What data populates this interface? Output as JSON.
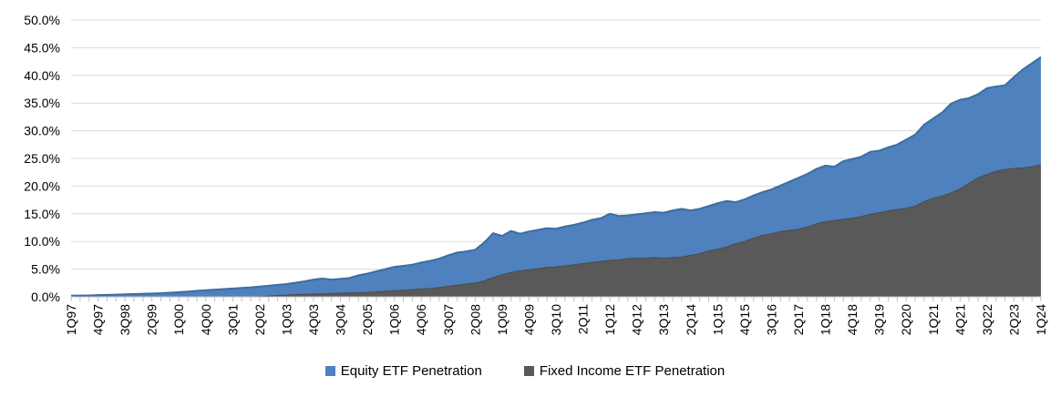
{
  "chart_data": {
    "type": "area",
    "title": "",
    "mode": "overlapping",
    "x_start": "1Q97",
    "x_end": "1Q24",
    "x_frequency": "quarterly",
    "x_tick_interval": 3,
    "x_tick_labels": [
      "1Q97",
      "4Q97",
      "3Q98",
      "2Q99",
      "1Q00",
      "4Q00",
      "3Q01",
      "2Q02",
      "1Q03",
      "4Q03",
      "3Q04",
      "2Q05",
      "1Q06",
      "4Q06",
      "3Q07",
      "2Q08",
      "1Q09",
      "4Q09",
      "3Q10",
      "2Q11",
      "1Q12",
      "4Q12",
      "3Q13",
      "2Q14",
      "1Q15",
      "4Q15",
      "3Q16",
      "2Q17",
      "1Q18",
      "4Q18",
      "3Q19",
      "2Q20",
      "1Q21",
      "4Q21",
      "3Q22",
      "2Q23",
      "1Q24"
    ],
    "y_tick_labels": [
      "0.0%",
      "5.0%",
      "10.0%",
      "15.0%",
      "20.0%",
      "25.0%",
      "30.0%",
      "35.0%",
      "40.0%",
      "45.0%",
      "50.0%"
    ],
    "ylim": [
      0,
      50
    ],
    "y_tick_step": 5,
    "grid": true,
    "gridline_color": "#D9D9D9",
    "axis_color": "#BFBFBF",
    "legend_position": "bottom",
    "series": [
      {
        "name": "Equity ETF Penetration",
        "color": "#4E81BD",
        "edge_color": "#3C6E9F",
        "values": [
          0.2,
          0.22,
          0.25,
          0.3,
          0.35,
          0.4,
          0.45,
          0.5,
          0.55,
          0.6,
          0.65,
          0.75,
          0.85,
          0.95,
          1.1,
          1.2,
          1.3,
          1.4,
          1.5,
          1.6,
          1.7,
          1.85,
          2.0,
          2.15,
          2.3,
          2.55,
          2.8,
          3.1,
          3.3,
          3.1,
          3.25,
          3.4,
          3.9,
          4.2,
          4.6,
          5.0,
          5.4,
          5.6,
          5.8,
          6.2,
          6.5,
          6.9,
          7.5,
          8.0,
          8.2,
          8.5,
          9.8,
          11.5,
          11.0,
          11.9,
          11.4,
          11.8,
          12.1,
          12.4,
          12.3,
          12.7,
          13.0,
          13.4,
          13.9,
          14.2,
          15.0,
          14.6,
          14.7,
          14.9,
          15.1,
          15.3,
          15.2,
          15.6,
          15.9,
          15.6,
          15.9,
          16.4,
          16.9,
          17.3,
          17.1,
          17.6,
          18.3,
          18.9,
          19.4,
          20.1,
          20.8,
          21.5,
          22.2,
          23.1,
          23.7,
          23.5,
          24.5,
          24.9,
          25.3,
          26.2,
          26.4,
          27.0,
          27.5,
          28.4,
          29.3,
          31.1,
          32.2,
          33.3,
          34.9,
          35.6,
          35.9,
          36.6,
          37.7,
          38.0,
          38.2,
          39.7,
          41.1,
          42.2,
          43.3
        ]
      },
      {
        "name": "Fixed Income ETF Penetration",
        "color": "#595959",
        "edge_color": "#4C4C4C",
        "values": [
          0,
          0,
          0,
          0,
          0,
          0,
          0,
          0,
          0,
          0,
          0,
          0,
          0,
          0,
          0,
          0,
          0,
          0,
          0,
          0,
          0,
          0.05,
          0.15,
          0.25,
          0.3,
          0.4,
          0.45,
          0.5,
          0.55,
          0.6,
          0.65,
          0.7,
          0.75,
          0.8,
          0.9,
          1.0,
          1.1,
          1.2,
          1.3,
          1.4,
          1.5,
          1.7,
          1.9,
          2.1,
          2.3,
          2.5,
          2.9,
          3.5,
          4.0,
          4.4,
          4.7,
          4.9,
          5.1,
          5.3,
          5.4,
          5.6,
          5.8,
          6.0,
          6.2,
          6.4,
          6.6,
          6.7,
          6.9,
          7.0,
          7.0,
          7.1,
          7.0,
          7.1,
          7.2,
          7.5,
          7.8,
          8.3,
          8.6,
          9.0,
          9.6,
          10.0,
          10.6,
          11.1,
          11.4,
          11.8,
          12.0,
          12.2,
          12.6,
          13.2,
          13.6,
          13.8,
          14.0,
          14.2,
          14.5,
          14.9,
          15.2,
          15.5,
          15.8,
          16.0,
          16.4,
          17.2,
          17.8,
          18.2,
          18.8,
          19.5,
          20.5,
          21.5,
          22.1,
          22.7,
          23.0,
          23.2,
          23.3,
          23.5,
          23.9
        ]
      }
    ]
  }
}
